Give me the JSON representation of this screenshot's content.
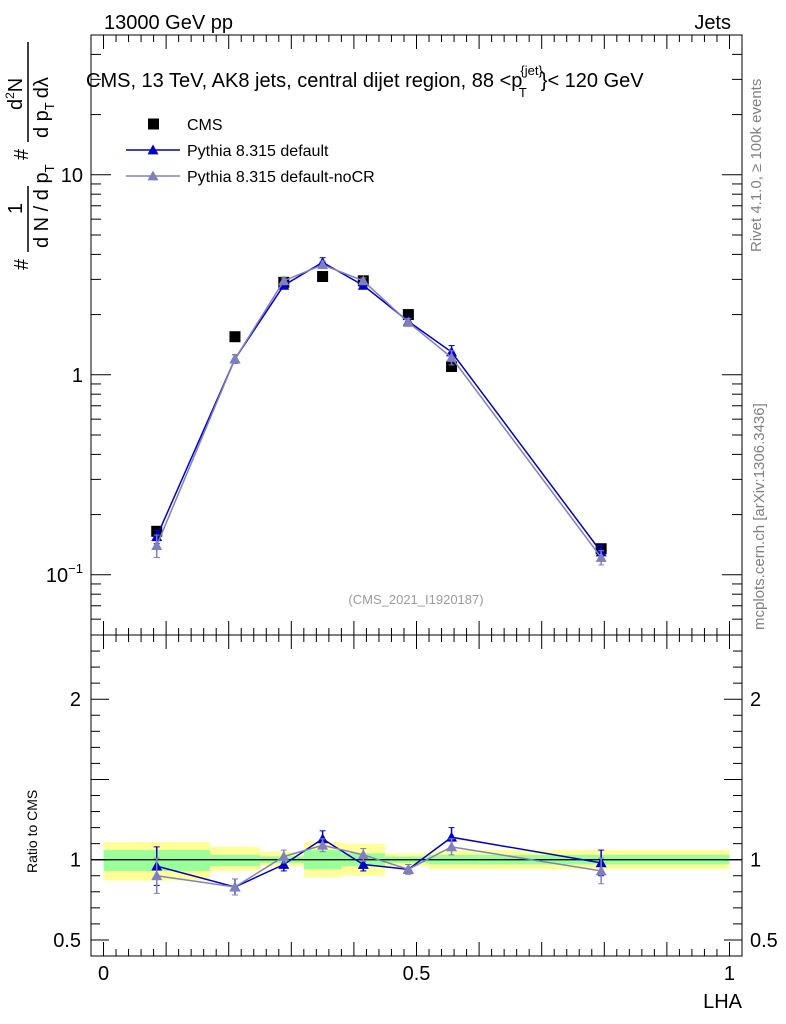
{
  "header": {
    "left": "13000 GeV pp",
    "right": "Jets"
  },
  "side_labels": {
    "rivet": "Rivet 4.1.0, ≥ 100k events",
    "mcplots": "mcplots.cern.ch [arXiv:1306.3436]"
  },
  "chart_data": {
    "type": "line",
    "title": "CMS, 13 TeV, AK8 jets, central dijet region, 88 <p",
    "title_sup": "{jet}",
    "title_sub": "T",
    "title_tail": "}< 120 GeV",
    "analysis_id": "(CMS_2021_I1920187)",
    "xlabel": "LHA",
    "ylabel": {
      "hash": "#",
      "one": "1",
      "den_dn": "d N / d p",
      "den_t": "T",
      "hash2": "#",
      "num": "d",
      "num_sup": "2",
      "num_n": "N",
      "den2": "d p",
      "den2_t": "T",
      "den2_tail": "dλ"
    },
    "x_range": [
      -0.02,
      1.02
    ],
    "y_range_main": [
      0.05,
      50
    ],
    "y_scale_main": "log",
    "y_ticks_main": [
      {
        "value": 0.1,
        "base": "10",
        "exp": "−1"
      },
      {
        "value": 1,
        "label": "1"
      },
      {
        "value": 10,
        "label": "10"
      }
    ],
    "x_ticks": [
      {
        "value": 0,
        "label": "0"
      },
      {
        "value": 0.5,
        "label": "0.5"
      },
      {
        "value": 1,
        "label": "1"
      }
    ],
    "legend_position": "top-left",
    "series": [
      {
        "name": "CMS",
        "color": "#000000",
        "marker": "square",
        "x": [
          0.085,
          0.21,
          0.288,
          0.35,
          0.415,
          0.487,
          0.556,
          0.795
        ],
        "y": [
          0.165,
          1.55,
          2.9,
          3.1,
          2.95,
          2.0,
          1.1,
          0.135
        ],
        "bins": [
          [
            0.0,
            0.17
          ],
          [
            0.17,
            0.25
          ],
          [
            0.25,
            0.32
          ],
          [
            0.32,
            0.38
          ],
          [
            0.38,
            0.45
          ],
          [
            0.45,
            0.52
          ],
          [
            0.52,
            0.6
          ],
          [
            0.6,
            1.0
          ]
        ]
      },
      {
        "name": "Pythia 8.315 default",
        "color": "#0000cc",
        "marker": "triangle",
        "x": [
          0.085,
          0.21,
          0.288,
          0.35,
          0.415,
          0.487,
          0.556,
          0.795
        ],
        "y": [
          0.155,
          1.2,
          2.8,
          3.65,
          2.8,
          1.85,
          1.3,
          0.13
        ],
        "yerr": [
          0.012,
          0.06,
          0.1,
          0.2,
          0.1,
          0.08,
          0.1,
          0.01
        ]
      },
      {
        "name": "Pythia 8.315 default-noCR",
        "color": "#8080c0",
        "marker": "triangle",
        "x": [
          0.085,
          0.21,
          0.288,
          0.35,
          0.415,
          0.487,
          0.556,
          0.795
        ],
        "y": [
          0.14,
          1.2,
          2.95,
          3.55,
          2.95,
          1.83,
          1.22,
          0.122
        ],
        "yerr": [
          0.018,
          0.06,
          0.1,
          0.15,
          0.1,
          0.08,
          0.1,
          0.01
        ]
      }
    ],
    "ratio": {
      "ylabel": "Ratio to CMS",
      "y_range": [
        0.4,
        2.4
      ],
      "y_ticks": [
        {
          "value": 0.5,
          "label": "0.5"
        },
        {
          "value": 1,
          "label": "1"
        },
        {
          "value": 2,
          "label": "2"
        }
      ],
      "bands": [
        {
          "x0": 0.0,
          "x1": 0.17,
          "green": [
            0.93,
            1.06
          ],
          "yellow": [
            0.87,
            1.11
          ]
        },
        {
          "x0": 0.17,
          "x1": 0.25,
          "green": [
            0.96,
            1.03
          ],
          "yellow": [
            0.93,
            1.08
          ]
        },
        {
          "x0": 0.25,
          "x1": 0.32,
          "green": [
            0.98,
            1.02
          ],
          "yellow": [
            0.96,
            1.05
          ]
        },
        {
          "x0": 0.32,
          "x1": 0.38,
          "green": [
            0.94,
            1.06
          ],
          "yellow": [
            0.89,
            1.11
          ]
        },
        {
          "x0": 0.38,
          "x1": 0.45,
          "green": [
            0.96,
            1.04
          ],
          "yellow": [
            0.9,
            1.1
          ]
        },
        {
          "x0": 0.45,
          "x1": 0.52,
          "green": [
            0.98,
            1.02
          ],
          "yellow": [
            0.96,
            1.04
          ]
        },
        {
          "x0": 0.52,
          "x1": 0.6,
          "green": [
            0.97,
            1.03
          ],
          "yellow": [
            0.94,
            1.06
          ]
        },
        {
          "x0": 0.6,
          "x1": 1.0,
          "green": [
            0.97,
            1.03
          ],
          "yellow": [
            0.94,
            1.06
          ]
        }
      ],
      "series": [
        {
          "name": "Pythia 8.315 default",
          "color": "#0000cc",
          "x": [
            0.085,
            0.21,
            0.288,
            0.35,
            0.415,
            0.487,
            0.556,
            0.795
          ],
          "y": [
            0.96,
            0.83,
            0.97,
            1.13,
            0.97,
            0.94,
            1.14,
            0.98
          ],
          "yerr": [
            0.12,
            0.05,
            0.04,
            0.05,
            0.04,
            0.03,
            0.06,
            0.08
          ]
        },
        {
          "name": "Pythia 8.315 default-noCR",
          "color": "#8080c0",
          "x": [
            0.085,
            0.21,
            0.288,
            0.35,
            0.415,
            0.487,
            0.556,
            0.795
          ],
          "y": [
            0.9,
            0.83,
            1.02,
            1.09,
            1.03,
            0.94,
            1.08,
            0.93
          ],
          "yerr": [
            0.11,
            0.05,
            0.04,
            0.04,
            0.04,
            0.03,
            0.05,
            0.08
          ]
        }
      ]
    }
  }
}
